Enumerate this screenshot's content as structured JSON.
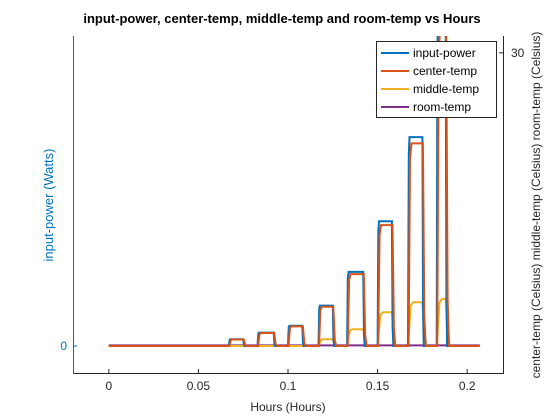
{
  "chart_data": {
    "type": "line",
    "title": "input-power, center-temp, middle-temp and room-temp vs Hours",
    "xlabel": "Hours (Hours)",
    "ylabel_left": "input-power (Watts)",
    "ylabel_right": "center-temp (Celsius) middle-temp (Celsius) room-temp (Celsius)",
    "xlim": [
      -0.02,
      0.22
    ],
    "x_ticks": [
      0,
      0.05,
      0.1,
      0.15,
      0.2
    ],
    "x_tick_labels": [
      "0",
      "0.05",
      "0.1",
      "0.15",
      "0.2"
    ],
    "left_ticks": [
      0
    ],
    "left_tick_labels": [
      "0"
    ],
    "right_ticks": [
      30
    ],
    "right_tick_labels": [
      "30"
    ],
    "ylim_right": [
      20.5,
      30.5
    ],
    "grid": false,
    "legend_position": "top-right",
    "pulses": [
      {
        "start": 0.067,
        "end": 0.075,
        "level": 21.5
      },
      {
        "start": 0.083,
        "end": 0.092,
        "level": 21.7
      },
      {
        "start": 0.1,
        "end": 0.108,
        "level": 21.9
      },
      {
        "start": 0.117,
        "end": 0.125,
        "level": 22.5
      },
      {
        "start": 0.133,
        "end": 0.142,
        "level": 23.5
      },
      {
        "start": 0.15,
        "end": 0.158,
        "level": 25.0
      },
      {
        "start": 0.167,
        "end": 0.175,
        "level": 27.5
      },
      {
        "start": 0.183,
        "end": 0.188,
        "level": 31.0
      }
    ],
    "baseline": 21.3,
    "x_end": 0.207,
    "middle_pulses": [
      {
        "start": 0.117,
        "end": 0.125,
        "level": 21.5
      },
      {
        "start": 0.133,
        "end": 0.142,
        "level": 21.8
      },
      {
        "start": 0.15,
        "end": 0.158,
        "level": 22.3
      },
      {
        "start": 0.167,
        "end": 0.175,
        "level": 22.6
      },
      {
        "start": 0.183,
        "end": 0.188,
        "level": 22.7
      }
    ],
    "series": [
      {
        "name": "input-power",
        "color": "#0072BD"
      },
      {
        "name": "center-temp",
        "color": "#D95319"
      },
      {
        "name": "middle-temp",
        "color": "#EDB120"
      },
      {
        "name": "room-temp",
        "color": "#7E2F8E"
      }
    ]
  }
}
